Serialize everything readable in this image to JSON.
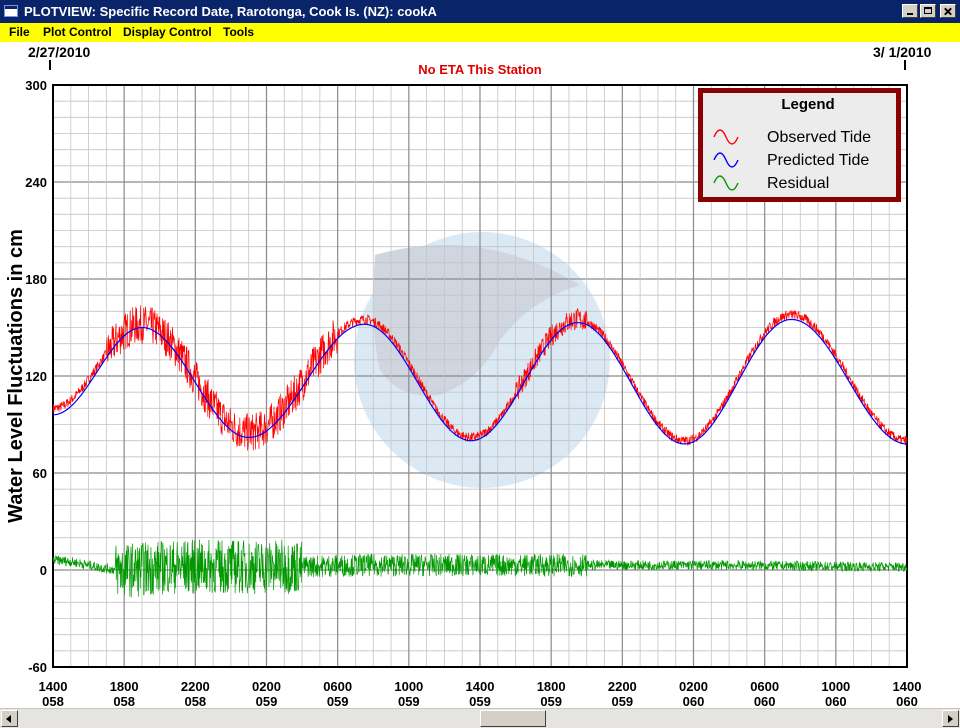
{
  "window": {
    "title": "PLOTVIEW: Specific Record Date, Rarotonga, Cook Is. (NZ): cookA"
  },
  "menu": {
    "items": [
      "File",
      "Plot Control",
      "Display Control",
      "Tools"
    ]
  },
  "header": {
    "start_date": "2/27/2010",
    "end_date": "3/ 1/2010",
    "eta_message": "No ETA This Station"
  },
  "legend": {
    "title": "Legend",
    "entries": [
      "Observed Tide",
      "Predicted Tide",
      "Residual"
    ]
  },
  "chart_data": {
    "type": "line",
    "ylabel": "Water Level Fluctuations in cm",
    "xlabel": "",
    "ylim": [
      -60,
      300
    ],
    "yticks": [
      -60,
      0,
      60,
      120,
      180,
      240,
      300
    ],
    "xticks": [
      {
        "time": "1400",
        "day": "058"
      },
      {
        "time": "1800",
        "day": "058"
      },
      {
        "time": "2200",
        "day": "058"
      },
      {
        "time": "0200",
        "day": "059"
      },
      {
        "time": "0600",
        "day": "059"
      },
      {
        "time": "1000",
        "day": "059"
      },
      {
        "time": "1400",
        "day": "059"
      },
      {
        "time": "1800",
        "day": "059"
      },
      {
        "time": "2200",
        "day": "059"
      },
      {
        "time": "0200",
        "day": "060"
      },
      {
        "time": "0600",
        "day": "060"
      },
      {
        "time": "1000",
        "day": "060"
      },
      {
        "time": "1400",
        "day": "060"
      }
    ],
    "grid": true,
    "legend_position": "top-right",
    "colors": {
      "observed": "#ff0000",
      "predicted": "#0000ff",
      "residual": "#009900",
      "legend_border": "#8b0000"
    },
    "series": [
      {
        "name": "Predicted Tide",
        "x": [
          "058 1400",
          "058 1900",
          "059 0100",
          "059 0730",
          "059 1330",
          "059 1930",
          "060 0130",
          "060 0730",
          "060 1400"
        ],
        "values": [
          96,
          150,
          82,
          152,
          80,
          153,
          78,
          155,
          78
        ]
      },
      {
        "name": "Observed Tide",
        "x": [
          "058 1400",
          "058 1900",
          "059 0100",
          "059 0730",
          "059 1330",
          "059 1930",
          "060 0130",
          "060 0730",
          "060 1400"
        ],
        "values": [
          100,
          152,
          85,
          155,
          82,
          155,
          80,
          158,
          80
        ]
      },
      {
        "name": "Residual",
        "x": [
          "058 1400",
          "058 1800",
          "058 2100",
          "059 0200",
          "059 0800",
          "059 1400",
          "060 0200",
          "060 1400"
        ],
        "values": [
          6,
          0,
          2,
          2,
          3,
          3,
          3,
          2
        ]
      }
    ]
  }
}
